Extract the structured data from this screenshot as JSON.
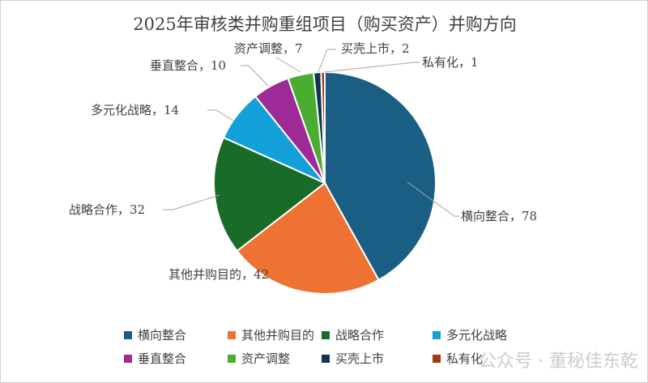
{
  "chart_data": {
    "type": "pie",
    "title": "2025年审核类并购重组项目（购买资产）并购方向",
    "categories": [
      "横向整合",
      "其他并购目的",
      "战略合作",
      "多元化战略",
      "垂直整合",
      "资产调整",
      "买壳上市",
      "私有化"
    ],
    "values": [
      78,
      42,
      32,
      14,
      10,
      7,
      2,
      1
    ],
    "colors": [
      "#1b5e84",
      "#ed7233",
      "#1a6b28",
      "#13a0d8",
      "#9e2a98",
      "#4aad32",
      "#0f3550",
      "#9c3a10"
    ],
    "data_labels": [
      "横向整合，78",
      "其他并购目的，42",
      "战略合作，32",
      "多元化战略，14",
      "垂直整合，10",
      "资产调整，7",
      "买壳上市，2",
      "私有化，1"
    ],
    "start_angle": "12 o'clock",
    "direction": "clockwise",
    "legend_placement": "bottom"
  },
  "watermark": "公众号 · 董秘佳东乾"
}
